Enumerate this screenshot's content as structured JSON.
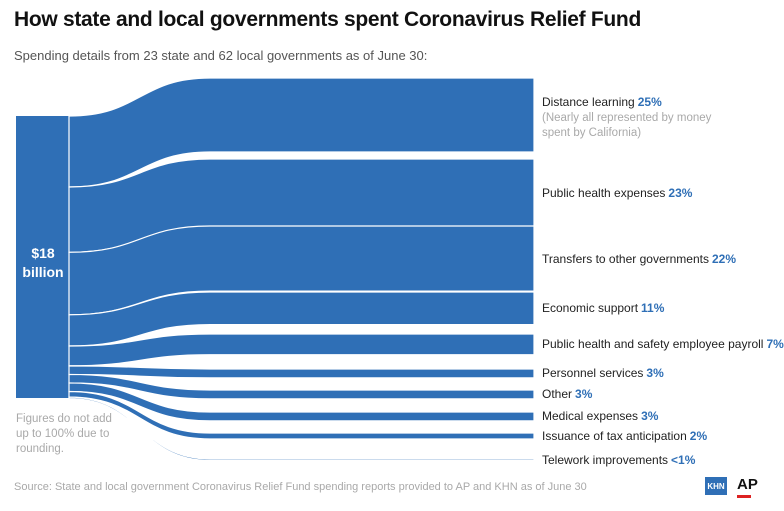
{
  "title": "How state and local governments spent Coronavirus Relief Fund",
  "subtitle": "Spending details from 23 state and 62 local governments as of June 30:",
  "total": {
    "line1": "$18",
    "line2": "billion"
  },
  "note": "Figures do not add up to 100% due to rounding.",
  "source": "Source: State and local government Coronavirus Relief Fund spending reports provided to AP and KHN as of June 30",
  "logos": {
    "khn": "KHN",
    "ap": "AP"
  },
  "colors": {
    "flow": "#2f6fb6",
    "accent_text": "#2f6fb6",
    "note_text": "#a9a9a9"
  },
  "chart_data": {
    "type": "sankey",
    "source_node": "$18 billion",
    "unit": "percent",
    "categories": [
      {
        "label": "Distance learning",
        "pct_label": "25%",
        "value": 25,
        "note": "(Nearly all represented by money spent by California)"
      },
      {
        "label": "Public health expenses",
        "pct_label": "23%",
        "value": 23
      },
      {
        "label": "Transfers to other governments",
        "pct_label": "22%",
        "value": 22
      },
      {
        "label": "Economic support",
        "pct_label": "11%",
        "value": 11
      },
      {
        "label": "Public health and safety employee payroll",
        "pct_label": "7%",
        "value": 7
      },
      {
        "label": "Personnel services",
        "pct_label": "3%",
        "value": 3
      },
      {
        "label": "Other",
        "pct_label": "3%",
        "value": 3
      },
      {
        "label": "Medical expenses",
        "pct_label": "3%",
        "value": 3
      },
      {
        "label": "Issuance of tax anticipation",
        "pct_label": "2%",
        "value": 2
      },
      {
        "label": "Telework improvements",
        "pct_label": "<1%",
        "value": 0.3
      }
    ]
  }
}
